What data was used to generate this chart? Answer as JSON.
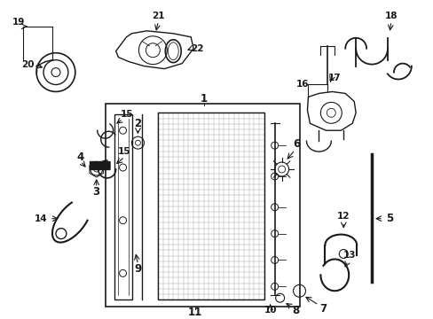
{
  "bg_color": "#ffffff",
  "line_color": "#1a1a1a",
  "figsize": [
    4.89,
    3.6
  ],
  "dpi": 100,
  "label_fontsize": 8.5,
  "small_fontsize": 7.5
}
